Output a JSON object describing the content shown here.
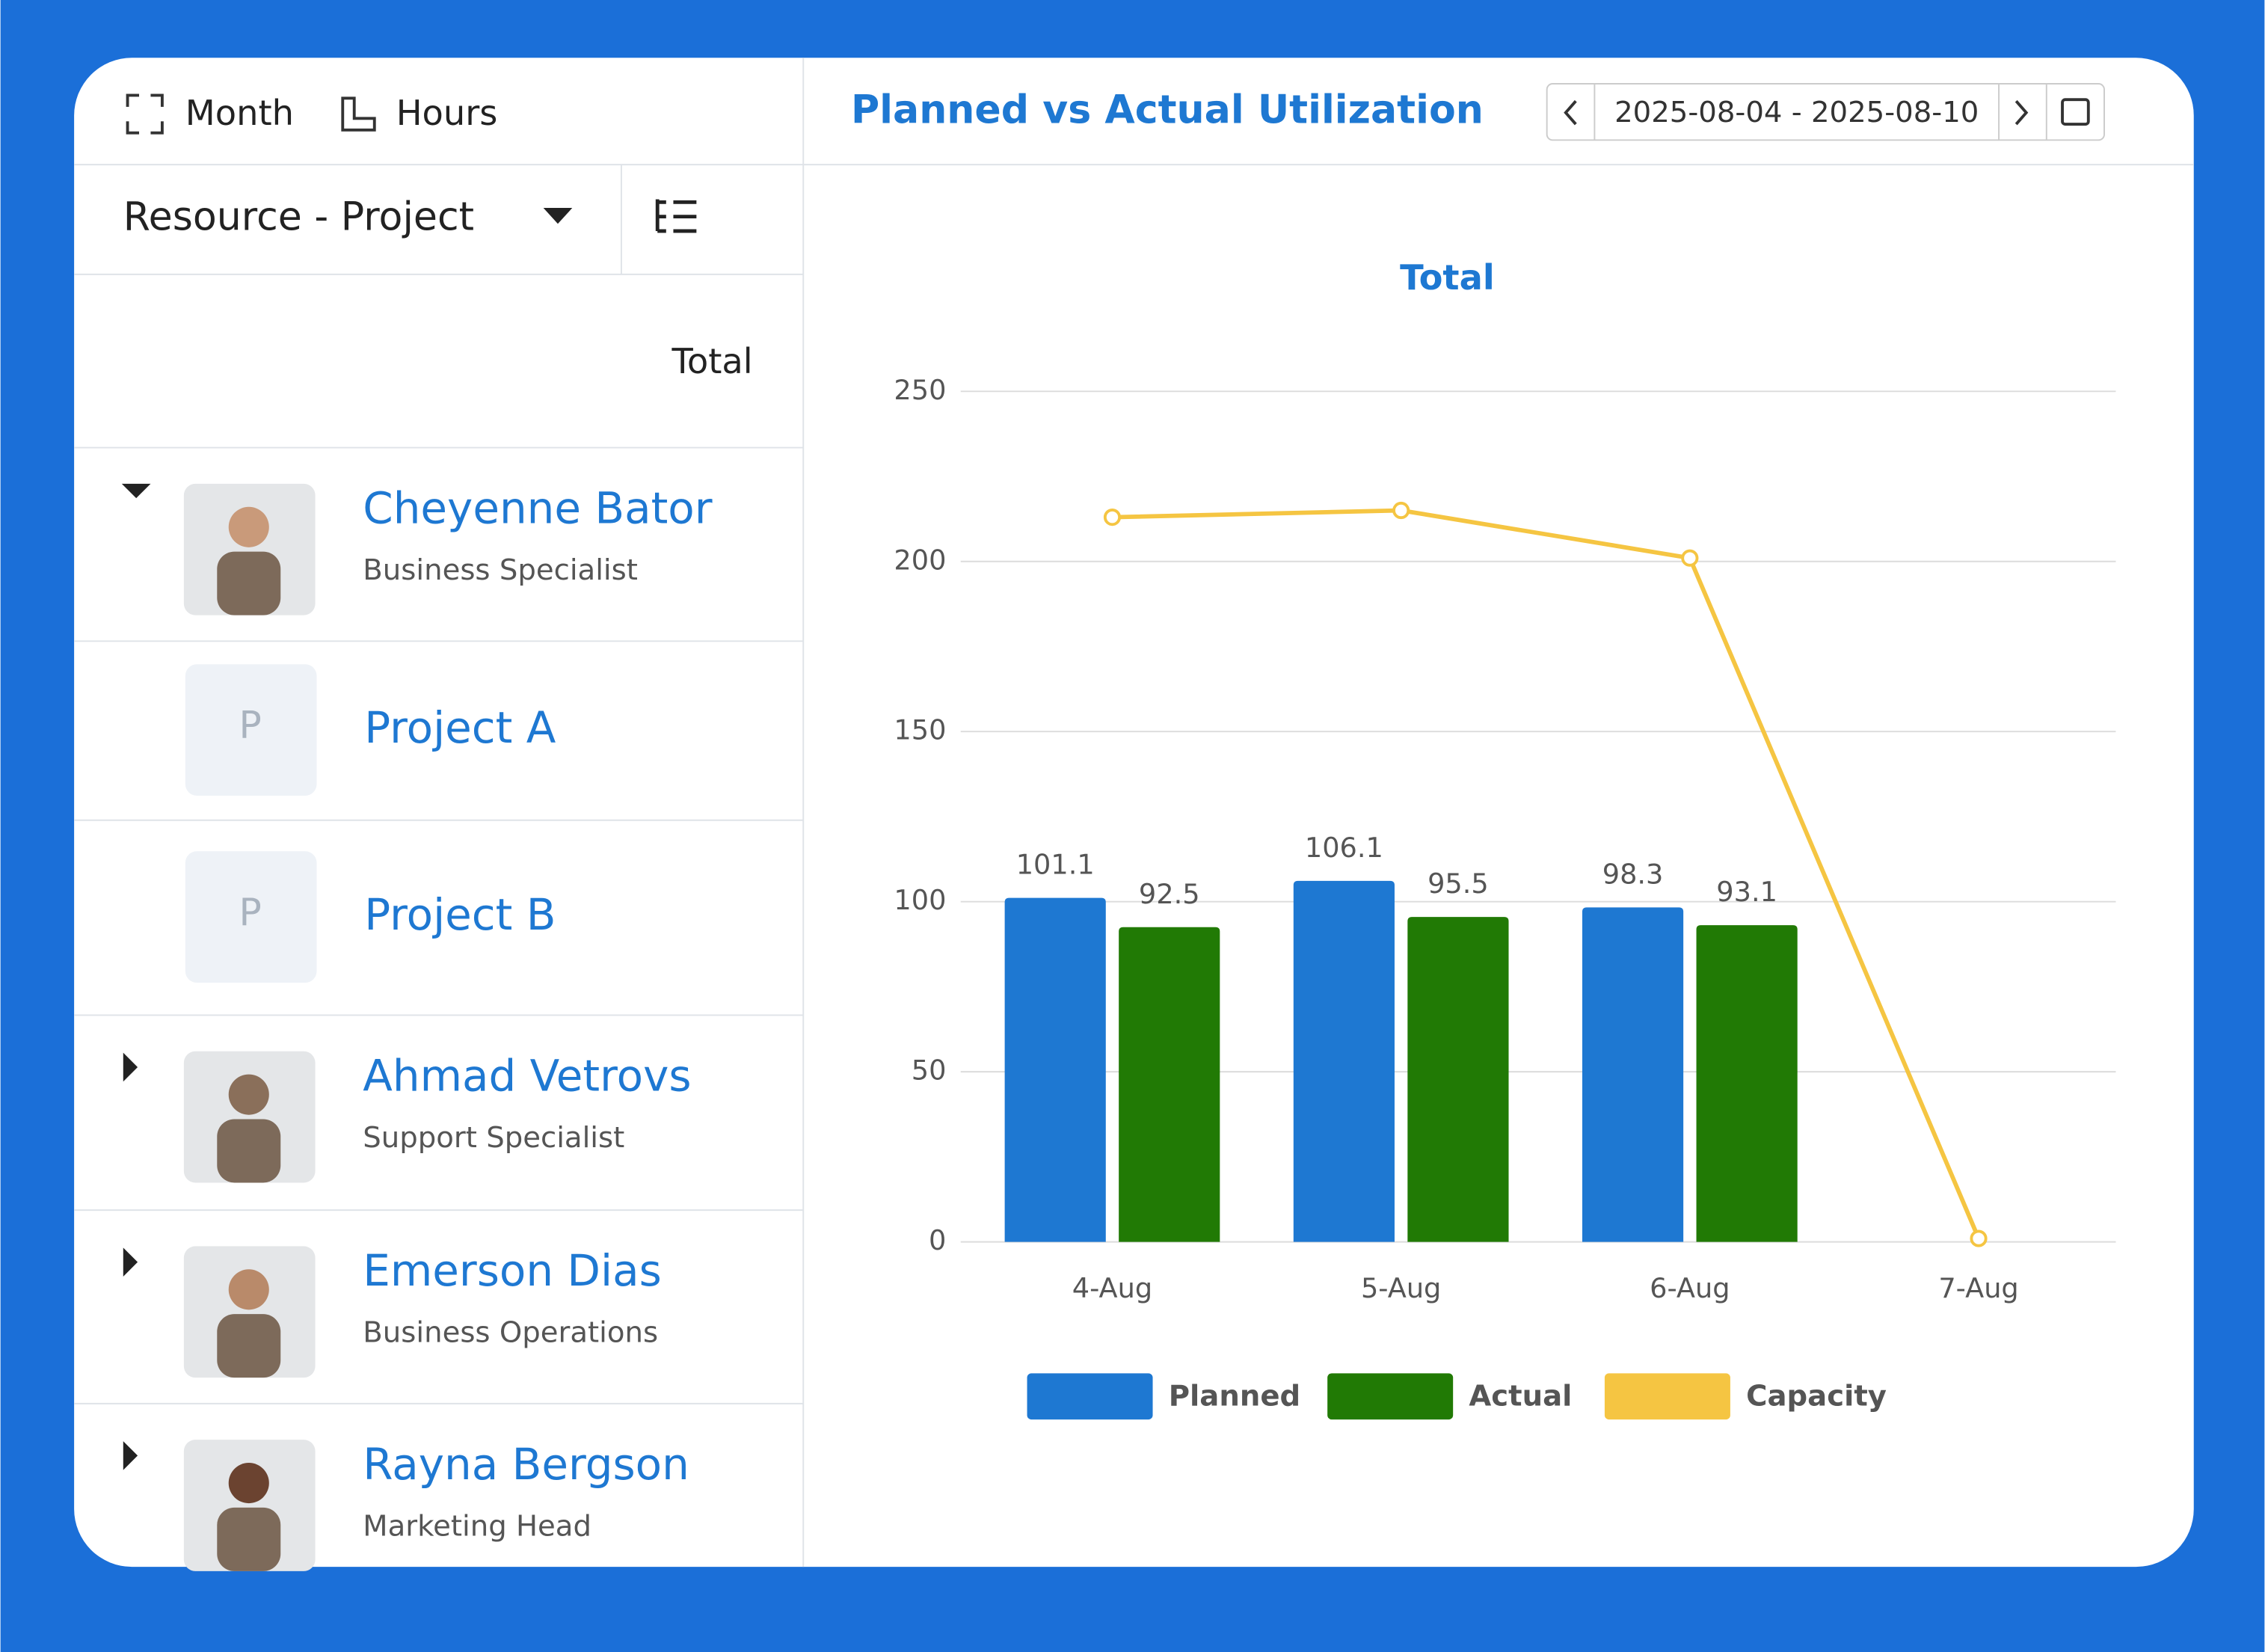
{
  "toolbar": {
    "view_buttons": [
      "Month",
      "Hours"
    ],
    "title": "Planned vs Actual Utilization",
    "date_range": "2025-08-04 - 2025-08-10"
  },
  "sidebar": {
    "grouping": "Resource - Project",
    "column_header": "Total",
    "rows": [
      {
        "name": "Cheyenne Bator",
        "role": "Business Specialist"
      },
      {
        "name": "Project A",
        "initial": "P"
      },
      {
        "name": "Project B",
        "initial": "P"
      },
      {
        "name": "Ahmad Vetrovs",
        "role": "Support Specialist"
      },
      {
        "name": "Emerson Dias",
        "role": "Business Operations"
      },
      {
        "name": "Rayna Bergson",
        "role": "Marketing Head"
      }
    ]
  },
  "chart_data": {
    "type": "bar",
    "title": "Total",
    "categories": [
      "4-Aug",
      "5-Aug",
      "6-Aug",
      "7-Aug"
    ],
    "series": [
      {
        "name": "Planned",
        "color": "#1e78d2",
        "values": [
          101.1,
          106.1,
          98.3,
          null
        ]
      },
      {
        "name": "Actual",
        "color": "#217a05",
        "values": [
          92.5,
          95.5,
          93.1,
          null
        ]
      },
      {
        "name": "Capacity",
        "color": "#f5c542",
        "type": "line",
        "values": [
          213,
          215,
          201,
          1
        ]
      }
    ],
    "ylim": [
      0,
      250
    ],
    "yticks": [
      0,
      50,
      100,
      150,
      200,
      250
    ],
    "grid": true,
    "legend": "bottom"
  }
}
